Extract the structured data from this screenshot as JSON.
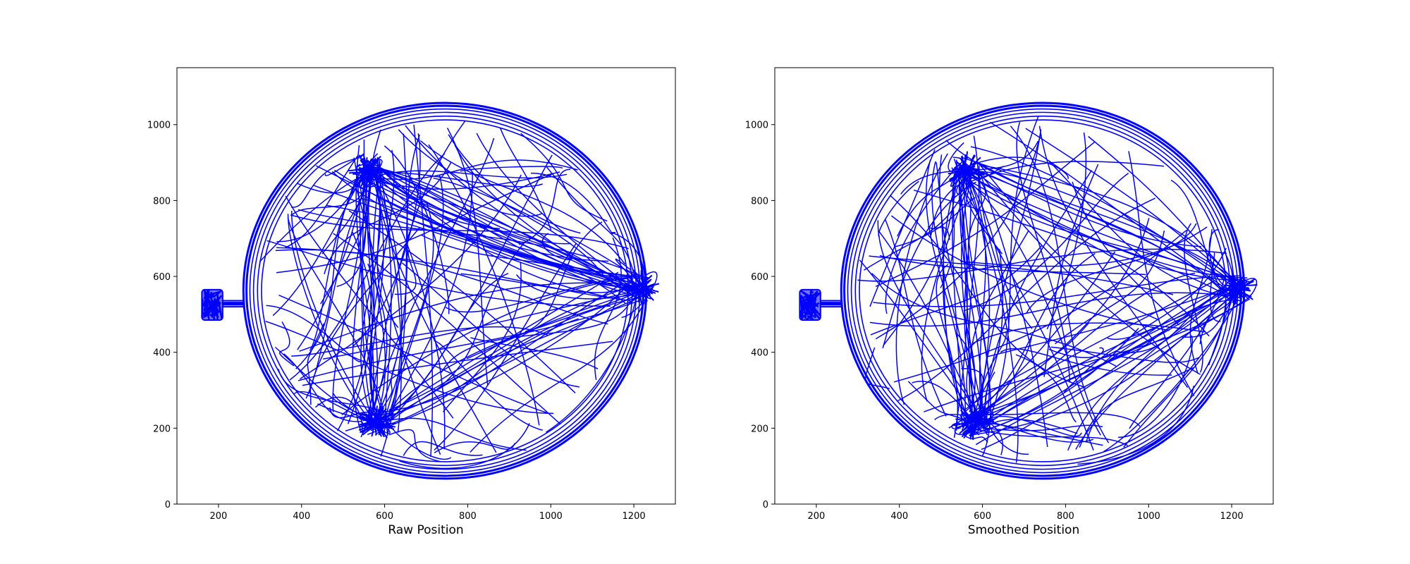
{
  "chart_data": [
    {
      "type": "line",
      "xlabel": "Raw Position",
      "ylabel": "",
      "title": "",
      "xlim": [
        100,
        1300
      ],
      "ylim": [
        0,
        1150
      ],
      "xticks": [
        200,
        400,
        600,
        800,
        1000,
        1200
      ],
      "yticks": [
        0,
        200,
        400,
        600,
        800,
        1000
      ],
      "grid": false,
      "line_color": "#0000ff",
      "arena": {
        "center_x": 745,
        "center_y": 562,
        "radius_x": 485,
        "radius_y": 495
      },
      "start_box": {
        "x": [
          160,
          210
        ],
        "y": [
          485,
          565
        ]
      },
      "corridor": {
        "x": [
          210,
          260
        ],
        "y": 528
      },
      "hotspots": [
        {
          "x": 560,
          "y": 880
        },
        {
          "x": 580,
          "y": 215
        },
        {
          "x": 1215,
          "y": 570
        }
      ]
    },
    {
      "type": "line",
      "xlabel": "Smoothed Position",
      "ylabel": "",
      "title": "",
      "xlim": [
        100,
        1300
      ],
      "ylim": [
        0,
        1150
      ],
      "xticks": [
        200,
        400,
        600,
        800,
        1000,
        1200
      ],
      "yticks": [
        0,
        200,
        400,
        600,
        800,
        1000
      ],
      "grid": false,
      "line_color": "#0000ff",
      "arena": {
        "center_x": 745,
        "center_y": 562,
        "radius_x": 485,
        "radius_y": 495
      },
      "start_box": {
        "x": [
          160,
          210
        ],
        "y": [
          485,
          565
        ]
      },
      "corridor": {
        "x": [
          210,
          260
        ],
        "y": 528
      },
      "hotspots": [
        {
          "x": 560,
          "y": 880
        },
        {
          "x": 580,
          "y": 215
        },
        {
          "x": 1215,
          "y": 570
        }
      ]
    }
  ]
}
